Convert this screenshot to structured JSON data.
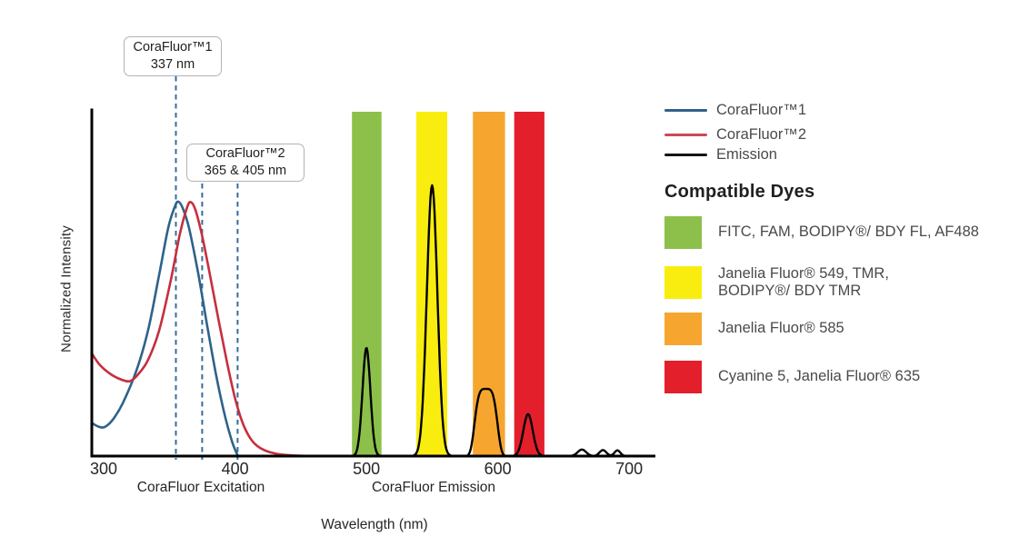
{
  "figure": {
    "callouts": [
      {
        "title": "CoraFluor™1",
        "subtitle": "337 nm"
      },
      {
        "title": "CoraFluor™2",
        "subtitle": "365 & 405 nm"
      }
    ],
    "legend": {
      "items": [
        {
          "label": "CoraFluor™1",
          "color": "#31618c"
        },
        {
          "label": "CoraFluor™2",
          "color": "#cb4a55"
        },
        {
          "label": "Emission",
          "color": "#141414"
        }
      ]
    },
    "dyes": {
      "heading": "Compatible Dyes",
      "items": [
        {
          "color": "#8cc04b",
          "label": "FITC, FAM, BODIPY®/ BDY FL, AF488"
        },
        {
          "color": "#f9ed0f",
          "label": "Janelia Fluor® 549, TMR,\nBODIPY®/ BDY TMR"
        },
        {
          "color": "#f6a62f",
          "label": "Janelia Fluor® 585"
        },
        {
          "color": "#e31f2b",
          "label": "Cyanine 5, Janelia Fluor® 635"
        }
      ]
    }
  },
  "chart_data": {
    "type": "line",
    "title": "",
    "xlabel": "Wavelength (nm)",
    "ylabel": "Normalized Intensity",
    "x_range": [
      300,
      700
    ],
    "x_ticks": [
      300,
      400,
      500,
      600,
      700
    ],
    "x_section_labels": [
      {
        "text": "CoraFluor Excitation"
      },
      {
        "text": "CoraFluor Emission"
      }
    ],
    "grid": false,
    "legend_position": "top-right",
    "bands": [
      {
        "name": "band-green-fitc",
        "nm": [
          489,
          511.5
        ],
        "color": "#8cc04b"
      },
      {
        "name": "band-yellow-jf549",
        "nm": [
          538,
          561.5
        ],
        "color": "#f9ed0f"
      },
      {
        "name": "band-orange-jf585",
        "nm": [
          581,
          605.5
        ],
        "color": "#f6a62f"
      },
      {
        "name": "band-red-cy5",
        "nm": [
          612.5,
          635.5
        ],
        "color": "#e31f2b"
      }
    ],
    "dashed_markers": {
      "color": "#356c9e",
      "lines_nm": [
        355,
        375,
        402
      ]
    },
    "excitation_series": [
      {
        "id": "corafluor1-excitation",
        "name": "CoraFluor™1",
        "color": "#2e6289",
        "points": [
          [
            291.4,
            0.121
          ],
          [
            295.9,
            0.109
          ],
          [
            300.7,
            0.107
          ],
          [
            306.9,
            0.134
          ],
          [
            314.5,
            0.195
          ],
          [
            324.9,
            0.315
          ],
          [
            333.9,
            0.466
          ],
          [
            342.2,
            0.668
          ],
          [
            349.1,
            0.842
          ],
          [
            354.0,
            0.919
          ],
          [
            356.7,
            0.94
          ],
          [
            360.2,
            0.916
          ],
          [
            365.0,
            0.842
          ],
          [
            372.0,
            0.674
          ],
          [
            378.9,
            0.48
          ],
          [
            385.8,
            0.295
          ],
          [
            392.7,
            0.141
          ],
          [
            398.2,
            0.047
          ],
          [
            402.0,
            0.003
          ]
        ]
      },
      {
        "id": "corafluor2-excitation",
        "name": "CoraFluor™2",
        "color": "#c62f3e",
        "points": [
          [
            291.4,
            0.376
          ],
          [
            297.2,
            0.336
          ],
          [
            305.5,
            0.302
          ],
          [
            313.8,
            0.282
          ],
          [
            320.1,
            0.277
          ],
          [
            326.3,
            0.302
          ],
          [
            333.9,
            0.356
          ],
          [
            342.2,
            0.463
          ],
          [
            351.2,
            0.651
          ],
          [
            358.1,
            0.822
          ],
          [
            363.6,
            0.919
          ],
          [
            366.4,
            0.938
          ],
          [
            369.9,
            0.909
          ],
          [
            374.7,
            0.819
          ],
          [
            380.2,
            0.688
          ],
          [
            387.2,
            0.51
          ],
          [
            394.1,
            0.342
          ],
          [
            400.3,
            0.208
          ],
          [
            406.5,
            0.114
          ],
          [
            413.4,
            0.054
          ],
          [
            421.7,
            0.023
          ],
          [
            432.1,
            0.008
          ],
          [
            445.9,
            0.002
          ],
          [
            459.7,
            0.0
          ]
        ]
      }
    ],
    "emission_series": {
      "id": "emission-spectrum",
      "name": "Emission",
      "color": "#000000",
      "range_nm": [
        478,
        712
      ],
      "peaks": [
        {
          "shape": "gaussian",
          "center_nm": 500,
          "height": 0.4,
          "sigma": 3.0
        },
        {
          "shape": "gaussian",
          "center_nm": 550,
          "height": 1.0,
          "sigma": 4.0
        },
        {
          "shape": "flattop",
          "center_nm": 591,
          "height": 0.248,
          "width": 9.5,
          "order": 4
        },
        {
          "shape": "gaussian",
          "center_nm": 623,
          "height": 0.155,
          "sigma": 3.6
        },
        {
          "shape": "gaussian",
          "center_nm": 664,
          "height": 0.024,
          "sigma": 3.2
        },
        {
          "shape": "gaussian",
          "center_nm": 680,
          "height": 0.022,
          "sigma": 2.6
        },
        {
          "shape": "gaussian",
          "center_nm": 691,
          "height": 0.021,
          "sigma": 2.2
        }
      ]
    }
  }
}
